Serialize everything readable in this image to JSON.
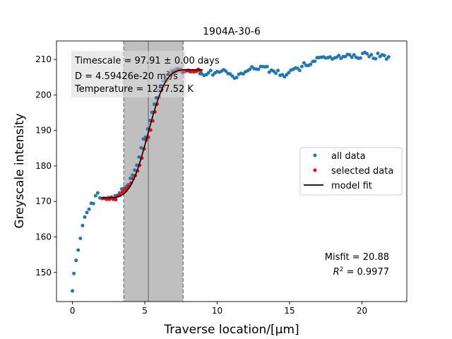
{
  "chart_data": {
    "type": "scatter",
    "title": "1904A-30-6",
    "xlabel": "Traverse location/[μm]",
    "ylabel": "Greyscale intensity",
    "xlim": [
      -1.1,
      23.1
    ],
    "ylim": [
      141.8,
      215.2
    ],
    "xticks": [
      0,
      5,
      10,
      15,
      20
    ],
    "yticks": [
      150,
      160,
      170,
      180,
      190,
      200,
      210
    ],
    "grid": false,
    "legend_position": "center-right",
    "colors": {
      "all_data": "#1f77b4",
      "selected_data": "#ff0000",
      "model_fit": "#000000",
      "shaded_region": "#bfbfbf",
      "region_edge": "#808080"
    },
    "annotations": {
      "timescale": "Timescale = 97.91 ± 0.00 days",
      "diffusivity_prefix": "D = 4.59426e-20 m",
      "diffusivity_exp": "2",
      "diffusivity_suffix": "/s",
      "temperature": "Temperature = 1257.52 K",
      "misfit": "Misfit = 20.88",
      "r2_prefix": "R",
      "r2_exp": "2",
      "r2_suffix": " = 0.9977"
    },
    "shaded_region": {
      "x_start": 3.55,
      "x_end": 7.65,
      "center_line": 5.25
    },
    "legend": [
      {
        "label": "all data",
        "marker": "dot",
        "color": "#1f77b4"
      },
      {
        "label": "selected data",
        "marker": "dot",
        "color": "#ff0000"
      },
      {
        "label": "model fit",
        "marker": "line",
        "color": "#000000"
      }
    ],
    "series": [
      {
        "name": "all data",
        "x": [
          0.0,
          0.1,
          0.25,
          0.4,
          0.55,
          0.7,
          0.85,
          1.0,
          1.15,
          1.3,
          1.45,
          1.6,
          1.75,
          1.9,
          2.05,
          2.2,
          2.35,
          2.5,
          2.65,
          2.8,
          2.95,
          3.1,
          3.25,
          3.4,
          3.55,
          3.7,
          3.85,
          4.0,
          4.15,
          4.3,
          4.45,
          4.6,
          4.75,
          4.9,
          5.05,
          5.2,
          5.35,
          5.5,
          5.65,
          5.8,
          5.95,
          6.1,
          6.25,
          6.4,
          6.55,
          6.7,
          6.85,
          7.0,
          7.15,
          7.3,
          7.45,
          7.6,
          7.75,
          7.9,
          8.05,
          8.2,
          8.35,
          8.5,
          8.65,
          8.8,
          8.95,
          9.1,
          9.25,
          9.4,
          9.55,
          9.7,
          9.85,
          10.0,
          10.15,
          10.3,
          10.45,
          10.6,
          10.75,
          10.9,
          11.05,
          11.2,
          11.35,
          11.5,
          11.65,
          11.8,
          11.95,
          12.1,
          12.25,
          12.4,
          12.55,
          12.7,
          12.85,
          13.0,
          13.15,
          13.3,
          13.45,
          13.6,
          13.75,
          13.9,
          14.05,
          14.2,
          14.35,
          14.5,
          14.65,
          14.8,
          14.95,
          15.1,
          15.25,
          15.4,
          15.55,
          15.7,
          15.85,
          16.0,
          16.15,
          16.3,
          16.45,
          16.6,
          16.75,
          16.9,
          17.05,
          17.2,
          17.35,
          17.5,
          17.65,
          17.8,
          17.95,
          18.1,
          18.25,
          18.4,
          18.55,
          18.7,
          18.85,
          19.0,
          19.15,
          19.3,
          19.45,
          19.6,
          19.75,
          19.9,
          20.05,
          20.2,
          20.35,
          20.5,
          20.65,
          20.8,
          20.95,
          21.1,
          21.25,
          21.4,
          21.55,
          21.7,
          21.85
        ],
        "y": [
          144.8,
          149.7,
          153.4,
          156.3,
          159.6,
          163.2,
          165.6,
          166.9,
          167.8,
          169.5,
          169.4,
          171.6,
          172.4,
          171.0,
          170.8,
          170.9,
          170.9,
          171.1,
          170.9,
          170.6,
          171.6,
          171.7,
          172.4,
          173.5,
          173.7,
          174.1,
          174.7,
          176.5,
          177.4,
          178.8,
          180.2,
          182.5,
          185.1,
          187.6,
          188.1,
          190.4,
          192.8,
          195.1,
          197.4,
          199.2,
          201.2,
          202.6,
          203.9,
          204.8,
          205.8,
          206.0,
          206.9,
          206.9,
          207.4,
          207.4,
          206.7,
          206.2,
          206.5,
          206.8,
          206.9,
          206.5,
          206.6,
          206.8,
          206.9,
          206.0,
          205.9,
          205.5,
          205.7,
          206.2,
          206.9,
          205.6,
          206.2,
          206.6,
          206.4,
          206.7,
          207.1,
          206.7,
          206.0,
          205.9,
          205.3,
          204.7,
          204.9,
          205.8,
          206.1,
          205.9,
          206.5,
          206.8,
          207.2,
          207.9,
          207.4,
          207.3,
          207.2,
          208.0,
          208.0,
          207.9,
          208.0,
          206.4,
          207.0,
          206.7,
          206.1,
          206.9,
          205.5,
          205.7,
          205.1,
          205.7,
          206.3,
          207.0,
          207.2,
          207.6,
          207.5,
          206.9,
          208.0,
          209.0,
          208.3,
          208.3,
          208.6,
          209.4,
          209.5,
          210.5,
          210.5,
          210.6,
          210.7,
          210.4,
          210.5,
          210.7,
          210.1,
          210.4,
          210.6,
          211.1,
          210.3,
          210.8,
          210.8,
          211.4,
          211.3,
          210.6,
          211.3,
          210.6,
          210.3,
          210.4,
          211.7,
          212.0,
          211.6,
          210.8,
          211.3,
          210.3,
          210.2,
          211.7,
          210.8,
          211.3,
          211.1,
          210.1,
          210.7
        ]
      },
      {
        "name": "selected data",
        "x": [
          2.15,
          2.35,
          2.55,
          2.7,
          2.85,
          3.0,
          3.15,
          3.3,
          3.45,
          3.6,
          3.75,
          3.9,
          4.05,
          4.2,
          4.35,
          4.5,
          4.65,
          4.8,
          4.95,
          5.1,
          5.25,
          5.4,
          5.55,
          5.7,
          5.85,
          6.0,
          6.15,
          6.3,
          6.45,
          6.6,
          6.75,
          6.9,
          7.05,
          7.2,
          7.35,
          7.5,
          7.65,
          7.8,
          7.95,
          8.1,
          8.25,
          8.4,
          8.55,
          8.7,
          8.85
        ],
        "y": [
          170.9,
          170.6,
          170.6,
          171.2,
          170.7,
          170.5,
          171.6,
          171.8,
          172.6,
          173.2,
          173.6,
          174.3,
          175.2,
          176.4,
          177.3,
          178.6,
          180.2,
          182.2,
          184.8,
          187.3,
          188.1,
          190.1,
          192.7,
          195.2,
          197.4,
          199.4,
          201.2,
          202.5,
          203.9,
          204.5,
          205.6,
          206.3,
          206.5,
          206.6,
          207.1,
          207.3,
          206.4,
          206.6,
          206.9,
          206.6,
          206.8,
          206.5,
          206.6,
          207.2,
          206.8
        ]
      },
      {
        "name": "model fit",
        "x": [
          2.0,
          2.5,
          3.0,
          3.25,
          3.5,
          3.75,
          4.0,
          4.25,
          4.5,
          4.75,
          5.0,
          5.25,
          5.5,
          5.75,
          6.0,
          6.25,
          6.5,
          6.75,
          7.0,
          7.25,
          7.5,
          7.75,
          8.0,
          8.5,
          9.0
        ],
        "y": [
          171.0,
          171.0,
          171.1,
          171.4,
          172.0,
          172.9,
          174.3,
          176.3,
          179.0,
          182.2,
          185.8,
          189.6,
          193.3,
          196.8,
          199.8,
          202.3,
          204.2,
          205.5,
          206.3,
          206.8,
          207.0,
          207.1,
          207.1,
          207.1,
          207.1
        ]
      }
    ]
  }
}
